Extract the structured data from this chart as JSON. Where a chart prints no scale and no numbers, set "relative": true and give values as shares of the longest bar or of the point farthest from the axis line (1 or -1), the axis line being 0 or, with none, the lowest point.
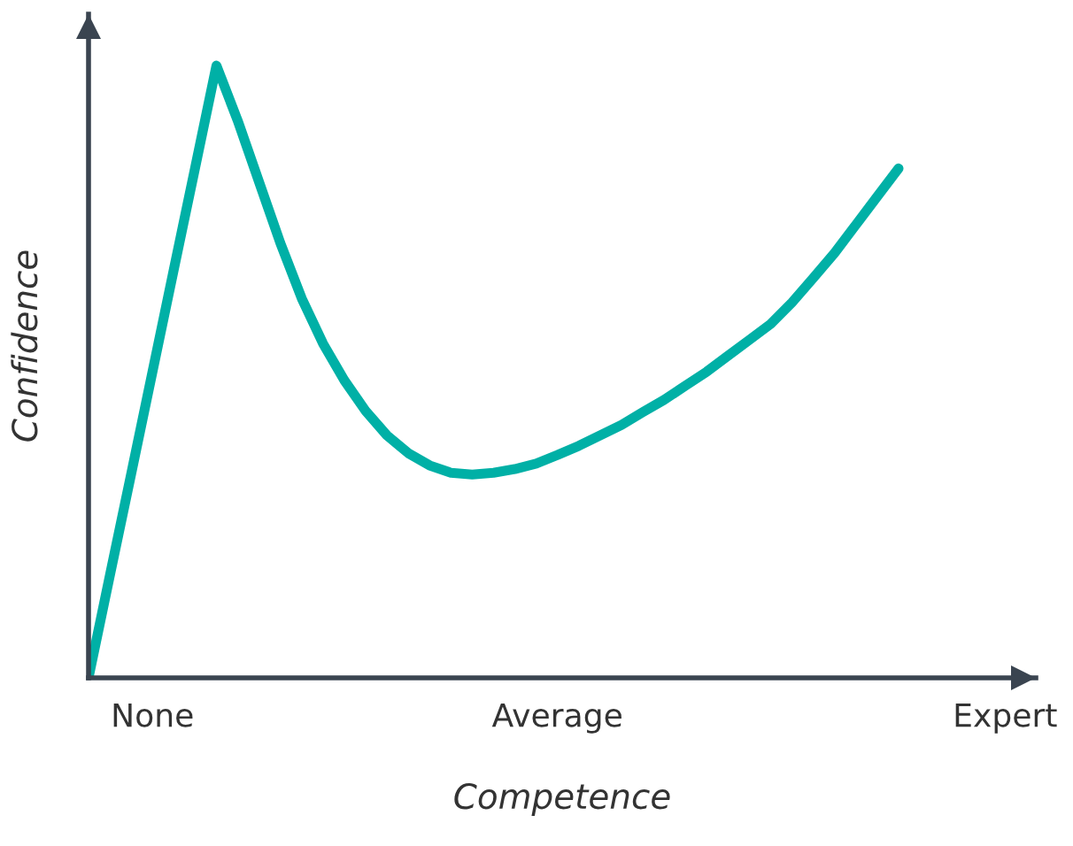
{
  "chart_data": {
    "type": "line",
    "relative": true,
    "xlabel": "Competence",
    "ylabel": "Confidence",
    "categories": [
      null,
      null,
      null,
      "None",
      null,
      null,
      null,
      null,
      null,
      null,
      null,
      null,
      null,
      null,
      null,
      null,
      null,
      null,
      null,
      null,
      null,
      null,
      "Average",
      null,
      null,
      null,
      null,
      null,
      null,
      null,
      null,
      null,
      null,
      null,
      null,
      null,
      null,
      null,
      null,
      null,
      null,
      null,
      null,
      "Expert",
      null
    ],
    "series": [
      {
        "color": "#00b0a6",
        "values": [
          0,
          0.167,
          0.333,
          0.5,
          0.667,
          0.833,
          1,
          0.91,
          0.81,
          0.71,
          0.62,
          0.546,
          0.486,
          0.436,
          0.396,
          0.367,
          0.347,
          0.335,
          0.332,
          0.335,
          0.341,
          0.35,
          0.364,
          0.379,
          0.396,
          0.413,
          0.434,
          0.454,
          0.477,
          0.5,
          0.526,
          0.552,
          0.578,
          0.613,
          0.653,
          0.694,
          0.74,
          0.786,
          0.832,
          null,
          null,
          null,
          null,
          null,
          null
        ]
      }
    ],
    "grid": false,
    "marker": "none",
    "line_style": "solid"
  }
}
